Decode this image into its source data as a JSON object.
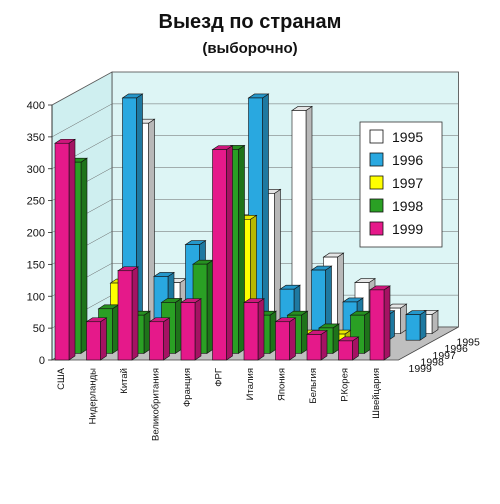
{
  "chart_data": {
    "type": "bar",
    "title": "Выезд по странам",
    "subtitle": "(выборочно)",
    "categories": [
      "США",
      "Нидерланды",
      "Китай",
      "Великобритания",
      "Франция",
      "ФРГ",
      "Италия",
      "Япония",
      "Бельгия",
      "Р.Корея",
      "Швейцария"
    ],
    "series": [
      {
        "name": "1995",
        "color": "#ffffff",
        "values": [
          null,
          330,
          80,
          70,
          180,
          220,
          350,
          120,
          80,
          40,
          30
        ]
      },
      {
        "name": "1996",
        "color": "#29a8e0",
        "values": [
          null,
          380,
          100,
          150,
          60,
          380,
          80,
          110,
          60,
          40,
          40
        ]
      },
      {
        "name": "1997",
        "color": "#ffff00",
        "values": [
          null,
          100,
          null,
          null,
          null,
          200,
          null,
          20,
          20,
          20,
          null
        ]
      },
      {
        "name": "1998",
        "color": "#2aa024",
        "values": [
          300,
          70,
          60,
          80,
          140,
          320,
          60,
          60,
          40,
          60,
          null
        ]
      },
      {
        "name": "1999",
        "color": "#e5198a",
        "values": [
          340,
          60,
          140,
          60,
          90,
          330,
          90,
          60,
          40,
          30,
          110
        ]
      }
    ],
    "ylim": [
      0,
      400
    ],
    "yticks": [
      "0",
      "50",
      "100",
      "150",
      "200",
      "250",
      "300",
      "350",
      "400"
    ],
    "depth_labels": [
      "1995",
      "1996",
      "1997",
      "1998",
      "1999"
    ],
    "legend_position": "right",
    "grid": true
  }
}
